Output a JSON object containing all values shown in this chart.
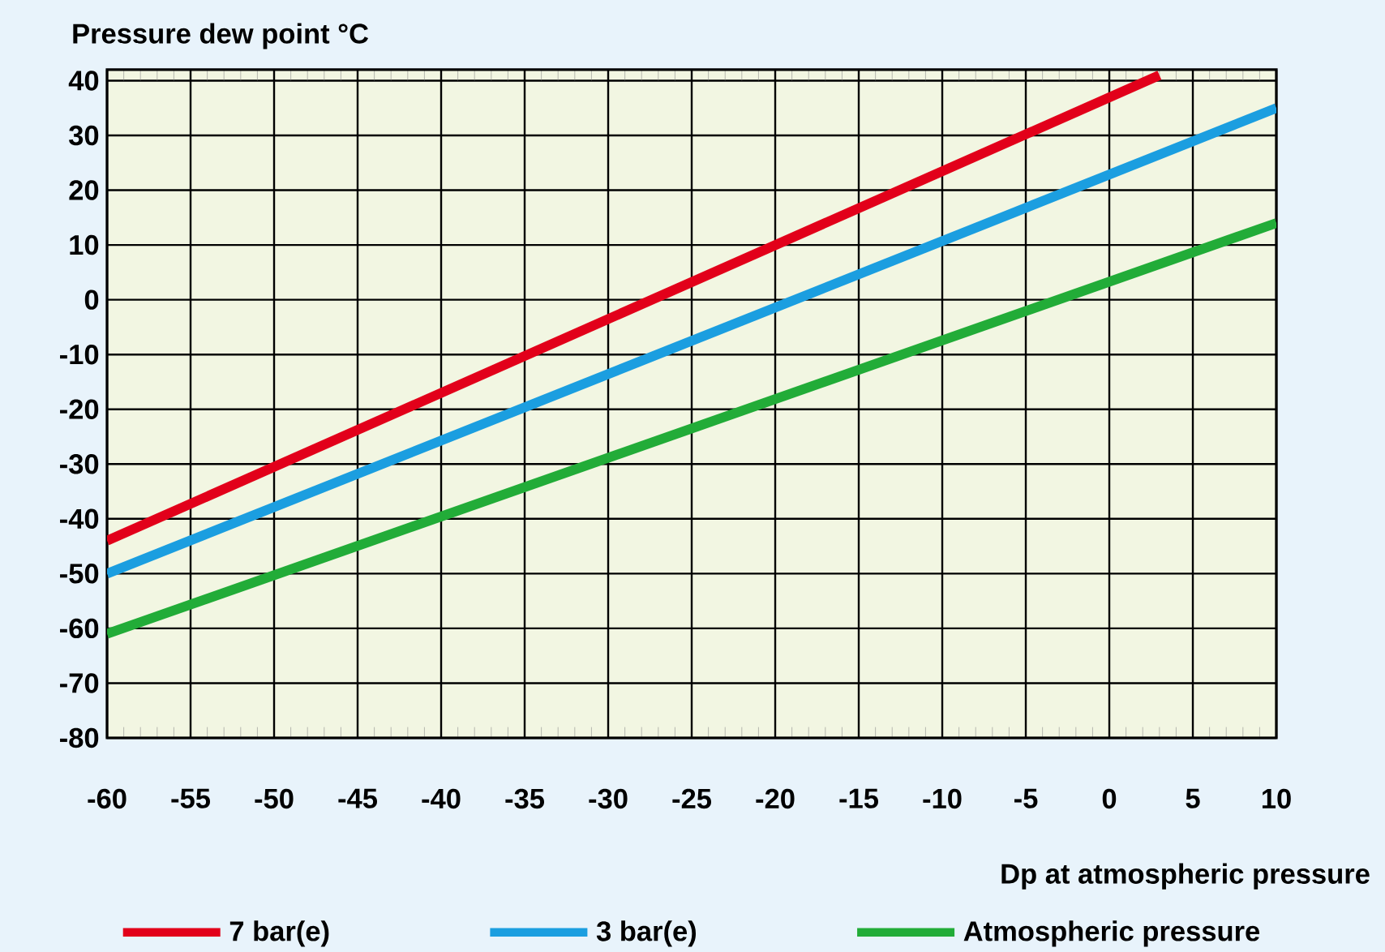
{
  "chart_data": {
    "type": "line",
    "ylabel": "Pressure dew point °C",
    "xlabel": "Dp at atmospheric pressure",
    "xlim": [
      -60,
      10
    ],
    "xticks": [
      -60,
      -55,
      -50,
      -45,
      -40,
      -35,
      -30,
      -25,
      -20,
      -15,
      -10,
      -5,
      0,
      5,
      10
    ],
    "ylim": [
      -80,
      42
    ],
    "yticks": [
      -80,
      -70,
      -60,
      -50,
      -40,
      -30,
      -20,
      -10,
      0,
      10,
      20,
      30,
      40
    ],
    "grid": true,
    "legend": "bottom",
    "marker": "none",
    "line_style": "solid",
    "series": [
      {
        "name": "7 bar(e)",
        "color": "#e2001a",
        "x": [
          -60,
          3
        ],
        "values": [
          -44,
          41
        ]
      },
      {
        "name": "3 bar(e)",
        "color": "#1b9ee0",
        "x": [
          -60,
          10
        ],
        "values": [
          -50,
          35
        ]
      },
      {
        "name": "Atmospheric pressure",
        "color": "#22ac38",
        "x": [
          -60,
          10
        ],
        "values": [
          -61,
          14
        ]
      }
    ]
  }
}
